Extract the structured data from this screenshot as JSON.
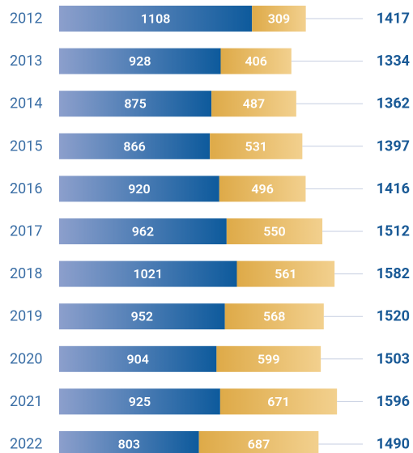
{
  "chart_data": {
    "type": "stacked-bar-horizontal",
    "categories": [
      "2012",
      "2013",
      "2014",
      "2015",
      "2016",
      "2017",
      "2018",
      "2019",
      "2020",
      "2021",
      "2022"
    ],
    "series": [
      {
        "color": "#0d5a9c",
        "values": [
          1108,
          928,
          875,
          866,
          920,
          962,
          1021,
          952,
          904,
          925,
          803
        ]
      },
      {
        "color": "#deaa48",
        "values": [
          309,
          406,
          487,
          531,
          496,
          550,
          561,
          568,
          599,
          671,
          687
        ]
      }
    ],
    "totals": [
      1417,
      1334,
      1362,
      1397,
      1416,
      1512,
      1582,
      1520,
      1503,
      1596,
      1490
    ]
  }
}
